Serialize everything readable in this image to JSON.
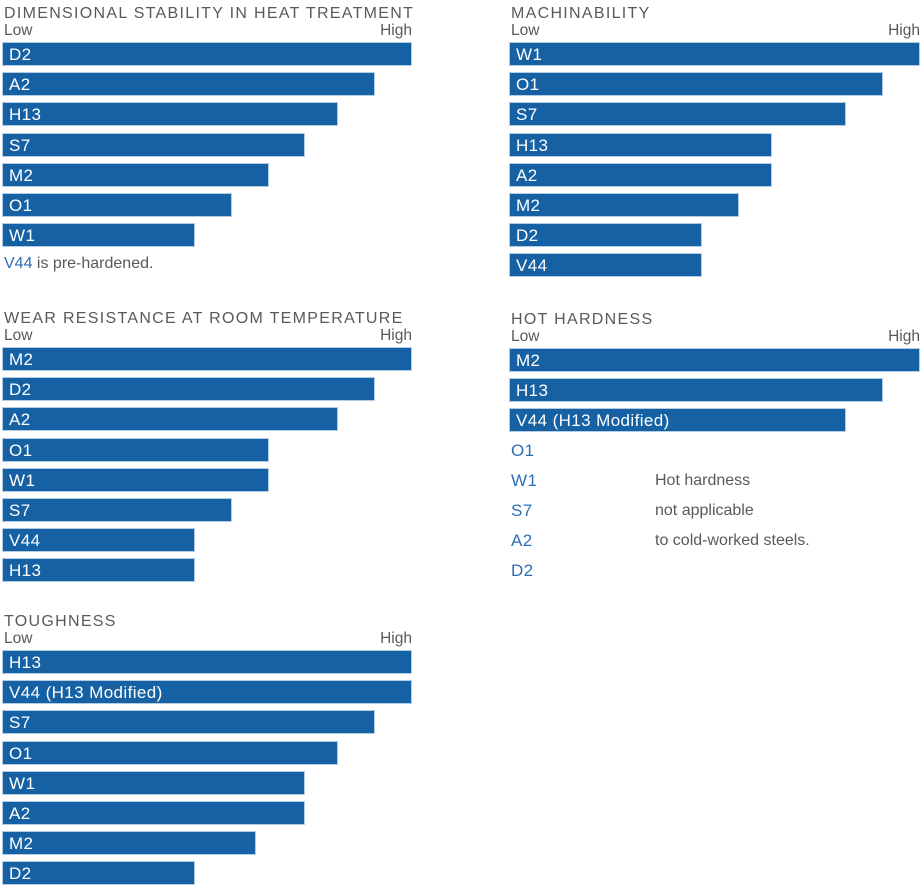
{
  "colors": {
    "bar_fill": "#1561A4",
    "bar_outline": "#B3CCE6",
    "bar_label_text": "#FFFFFF",
    "heading_text": "#58595B",
    "steel_label_blue": "#2E6DB7"
  },
  "chart_data": [
    {
      "type": "bar",
      "orientation": "horizontal",
      "title": "DIMENSIONAL STABILITY IN HEAT TREATMENT",
      "axis": {
        "low": "Low",
        "high": "High"
      },
      "unit": "relative rating, percent of axis length (Low to High)",
      "categories": [
        "D2",
        "A2",
        "H13",
        "S7",
        "M2",
        "O1",
        "W1"
      ],
      "values": [
        100,
        91,
        82,
        74,
        65,
        56,
        47
      ],
      "footnote": {
        "lead": "V44",
        "rest": " is pre-hardened."
      }
    },
    {
      "type": "bar",
      "orientation": "horizontal",
      "title": "MACHINABILITY",
      "axis": {
        "low": "Low",
        "high": "High"
      },
      "unit": "relative rating, percent of axis length (Low to High)",
      "categories": [
        "W1",
        "O1",
        "S7",
        "H13",
        "A2",
        "M2",
        "D2",
        "V44"
      ],
      "values": [
        100,
        91,
        82,
        64,
        64,
        56,
        47,
        47
      ]
    },
    {
      "type": "bar",
      "orientation": "horizontal",
      "title": "WEAR RESISTANCE AT ROOM TEMPERATURE",
      "axis": {
        "low": "Low",
        "high": "High"
      },
      "unit": "relative rating, percent of axis length (Low to High)",
      "categories": [
        "M2",
        "D2",
        "A2",
        "O1",
        "W1",
        "S7",
        "V44",
        "H13"
      ],
      "values": [
        100,
        91,
        82,
        65,
        65,
        56,
        47,
        47
      ]
    },
    {
      "type": "bar",
      "orientation": "horizontal",
      "title": "HOT HARDNESS",
      "axis": {
        "low": "Low",
        "high": "High"
      },
      "unit": "relative rating, percent of axis length (Low to High)",
      "categories": [
        "M2",
        "H13",
        "V44 (H13 Modified)"
      ],
      "values": [
        100,
        91,
        82
      ],
      "text_rows": [
        {
          "label": "O1",
          "note": ""
        },
        {
          "label": "W1",
          "note": "Hot hardness"
        },
        {
          "label": "S7",
          "note": "not applicable"
        },
        {
          "label": "A2",
          "note": "to cold-worked steels."
        },
        {
          "label": "D2",
          "note": ""
        }
      ]
    },
    {
      "type": "bar",
      "orientation": "horizontal",
      "title": "TOUGHNESS",
      "axis": {
        "low": "Low",
        "high": "High"
      },
      "unit": "relative rating, percent of axis length (Low to High)",
      "categories": [
        "H13",
        "V44 (H13 Modified)",
        "S7",
        "O1",
        "W1",
        "A2",
        "M2",
        "D2"
      ],
      "values": [
        100,
        100,
        91,
        82,
        74,
        74,
        62,
        47
      ]
    }
  ]
}
